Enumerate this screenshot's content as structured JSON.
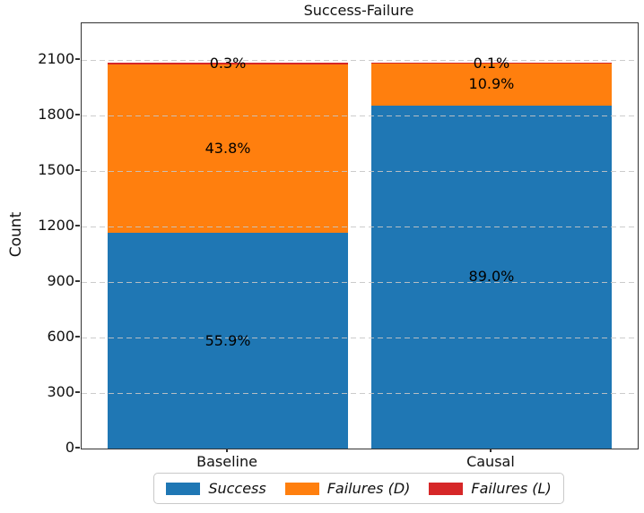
{
  "figure": {
    "background": "#ffffff"
  },
  "chart_data": {
    "type": "bar",
    "stacked": true,
    "title": "Success-Failure",
    "xlabel": "",
    "ylabel": "Count",
    "categories": [
      "Baseline",
      "Causal"
    ],
    "yticks": [
      0,
      300,
      600,
      900,
      1200,
      1500,
      1800,
      2100
    ],
    "ylim": [
      0,
      2300
    ],
    "grid": "horizontal dashed gridlines drawn over bars",
    "legend_position": "lower center, outside axes",
    "estimated_total_per_bar": 2085,
    "series": [
      {
        "name": "Success",
        "color": "#1f77b4",
        "percentages": [
          55.9,
          89.0
        ],
        "counts": [
          1166,
          1856
        ],
        "labels": [
          "55.9%",
          "89.0%"
        ]
      },
      {
        "name": "Failures (D)",
        "color": "#ff7f0e",
        "percentages": [
          43.8,
          10.9
        ],
        "counts": [
          913,
          227
        ],
        "labels": [
          "43.8%",
          "10.9%"
        ]
      },
      {
        "name": "Failures (L)",
        "color": "#d62728",
        "percentages": [
          0.3,
          0.1
        ],
        "counts": [
          6,
          2
        ],
        "labels": [
          "0.3%",
          "0.1%"
        ]
      }
    ],
    "layout": {
      "bar_centers_frac": [
        0.263,
        0.737
      ],
      "bar_width_frac": 0.432
    }
  }
}
